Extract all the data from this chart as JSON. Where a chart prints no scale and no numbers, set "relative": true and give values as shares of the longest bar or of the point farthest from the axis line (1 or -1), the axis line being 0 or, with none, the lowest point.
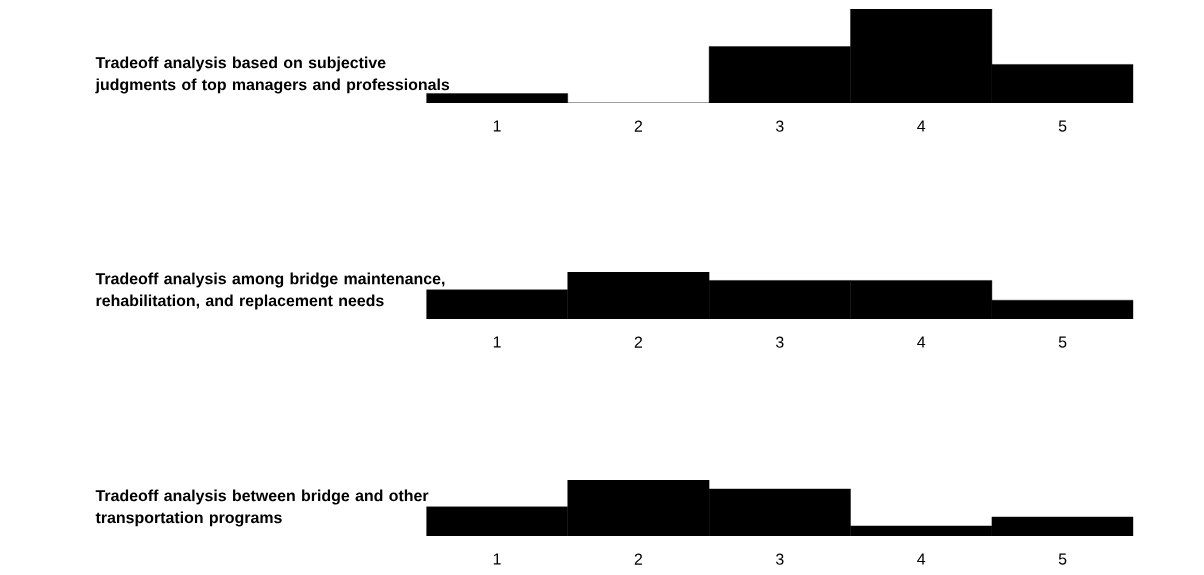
{
  "chart_data": [
    {
      "type": "bar",
      "title": "Tradeoff analysis based on subjective judgments of top managers and professionals",
      "categories": [
        "1",
        "2",
        "3",
        "4",
        "5"
      ],
      "values": [
        0.1,
        0,
        0.6,
        1,
        0.41
      ],
      "color": "#000000",
      "relative": true
    },
    {
      "type": "bar",
      "title": "Tradeoff analysis among bridge maintenance, rehabilitation, and replacement needs",
      "categories": [
        "1",
        "2",
        "3",
        "4",
        "5"
      ],
      "values": [
        0.62,
        1,
        0.82,
        0.82,
        0.4
      ],
      "color": "#000000",
      "relative": true
    },
    {
      "type": "bar",
      "title": "Tradeoff analysis between bridge and other transportation programs",
      "categories": [
        "1",
        "2",
        "3",
        "4",
        "5"
      ],
      "values": [
        0.52,
        1,
        0.84,
        0.18,
        0.34
      ],
      "color": "#000000",
      "relative": true
    }
  ]
}
